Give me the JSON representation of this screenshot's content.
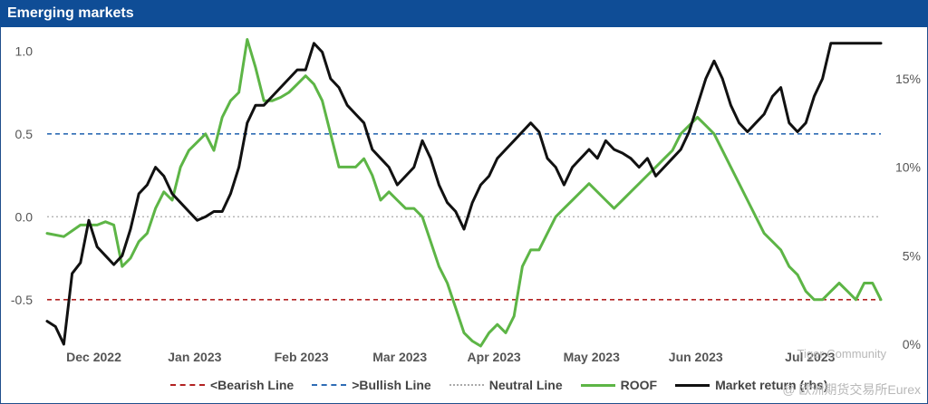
{
  "panel": {
    "title": "Emerging markets"
  },
  "watermark": {
    "line1": "Tiger Community",
    "line2": "@ 欧洲期货交易所Eurex"
  },
  "colors": {
    "header": "#0f4d96",
    "roof": "#5db546",
    "market": "#111111",
    "bearish": "#b22222",
    "bullish": "#2e6cb5",
    "neutral": "#aaaaaa"
  },
  "chart_data": {
    "type": "line",
    "title": "Emerging markets",
    "xlabel": "",
    "ylabel": "",
    "x_ticks": [
      "Dec 2022",
      "Jan 2023",
      "Feb 2023",
      "Mar 2023",
      "Apr 2023",
      "May 2023",
      "Jun 2023",
      "Jul 2023"
    ],
    "x_range": [
      0,
      100
    ],
    "y_left": {
      "ticks": [
        "1.0",
        "0.5",
        "0.0",
        "-0.5"
      ],
      "ylim": [
        -0.78,
        1.1
      ]
    },
    "y_right": {
      "ticks": [
        "15%",
        "10%",
        "5%",
        "0%"
      ],
      "ylim": [
        -0.1,
        17.5
      ]
    },
    "reference_lines": [
      {
        "name": "<Bearish Line",
        "y": -0.5,
        "style": "dashed",
        "color": "#b22222"
      },
      {
        "name": ">Bullish Line",
        "y": 0.5,
        "style": "dashed",
        "color": "#2e6cb5"
      },
      {
        "name": "Neutral Line",
        "y": 0.0,
        "style": "dotted",
        "color": "#aaaaaa"
      }
    ],
    "series": [
      {
        "name": "ROOF",
        "axis": "left",
        "color": "#5db546",
        "x": [
          0,
          2,
          4,
          6,
          7,
          8,
          9,
          10,
          11,
          12,
          13,
          14,
          15,
          16,
          17,
          18,
          19,
          20,
          21,
          22,
          23,
          24,
          25,
          26,
          27,
          28,
          29,
          30,
          31,
          32,
          33,
          34,
          35,
          36,
          37,
          38,
          39,
          40,
          41,
          42,
          43,
          44,
          45,
          46,
          47,
          48,
          49,
          50,
          51,
          52,
          53,
          54,
          55,
          56,
          57,
          58,
          59,
          60,
          61,
          62,
          63,
          64,
          65,
          66,
          67,
          68,
          69,
          70,
          71,
          72,
          73,
          74,
          75,
          76,
          77,
          78,
          79,
          80,
          81,
          82,
          83,
          84,
          85,
          86,
          87,
          88,
          89,
          90,
          91,
          92,
          93,
          94,
          95,
          96,
          97,
          98,
          99,
          100
        ],
        "y": [
          -0.1,
          -0.12,
          -0.05,
          -0.05,
          -0.03,
          -0.05,
          -0.3,
          -0.25,
          -0.15,
          -0.1,
          0.05,
          0.15,
          0.1,
          0.3,
          0.4,
          0.45,
          0.5,
          0.4,
          0.6,
          0.7,
          0.75,
          1.07,
          0.9,
          0.7,
          0.7,
          0.72,
          0.75,
          0.8,
          0.85,
          0.8,
          0.7,
          0.5,
          0.3,
          0.3,
          0.3,
          0.35,
          0.25,
          0.1,
          0.15,
          0.1,
          0.05,
          0.05,
          0.0,
          -0.15,
          -0.3,
          -0.4,
          -0.55,
          -0.7,
          -0.75,
          -0.78,
          -0.7,
          -0.65,
          -0.7,
          -0.6,
          -0.3,
          -0.2,
          -0.2,
          -0.1,
          0.0,
          0.05,
          0.1,
          0.15,
          0.2,
          0.15,
          0.1,
          0.05,
          0.1,
          0.15,
          0.2,
          0.25,
          0.3,
          0.35,
          0.4,
          0.5,
          0.55,
          0.6,
          0.55,
          0.5,
          0.4,
          0.3,
          0.2,
          0.1,
          0.0,
          -0.1,
          -0.15,
          -0.2,
          -0.3,
          -0.35,
          -0.45,
          -0.5,
          -0.5,
          -0.45,
          -0.4,
          -0.45,
          -0.5,
          -0.4,
          -0.4,
          -0.5
        ]
      },
      {
        "name": "Market return (rhs)",
        "axis": "right",
        "color": "#111111",
        "x": [
          0,
          1,
          2,
          3,
          4,
          5,
          6,
          7,
          8,
          9,
          10,
          11,
          12,
          13,
          14,
          15,
          16,
          17,
          18,
          19,
          20,
          21,
          22,
          23,
          24,
          25,
          26,
          27,
          28,
          29,
          30,
          31,
          32,
          33,
          34,
          35,
          36,
          37,
          38,
          39,
          40,
          41,
          42,
          43,
          44,
          45,
          46,
          47,
          48,
          49,
          50,
          51,
          52,
          53,
          54,
          55,
          56,
          57,
          58,
          59,
          60,
          61,
          62,
          63,
          64,
          65,
          66,
          67,
          68,
          69,
          70,
          71,
          72,
          73,
          74,
          75,
          76,
          77,
          78,
          79,
          80,
          81,
          82,
          83,
          84,
          85,
          86,
          87,
          88,
          89,
          90,
          91,
          92,
          93,
          94,
          95,
          96,
          97,
          98,
          99,
          100
        ],
        "y": [
          1.3,
          1.0,
          0.0,
          4.0,
          4.6,
          7.0,
          5.5,
          5.0,
          4.5,
          5.0,
          6.5,
          8.5,
          9.0,
          10.0,
          9.5,
          8.5,
          8.0,
          7.5,
          7.0,
          7.2,
          7.5,
          7.5,
          8.5,
          10.0,
          12.5,
          13.5,
          13.5,
          14.0,
          14.5,
          15.0,
          15.5,
          15.5,
          17.0,
          16.5,
          15.0,
          14.5,
          13.5,
          13.0,
          12.5,
          11.0,
          10.5,
          10.0,
          9.0,
          9.5,
          10.0,
          11.5,
          10.5,
          9.0,
          8.0,
          7.5,
          6.5,
          8.0,
          9.0,
          9.5,
          10.5,
          11.0,
          11.5,
          12.0,
          12.5,
          12.0,
          10.5,
          10.0,
          9.0,
          10.0,
          10.5,
          11.0,
          10.5,
          11.5,
          11.0,
          10.8,
          10.5,
          10.0,
          10.5,
          9.5,
          10.0,
          10.5,
          11.0,
          12.0,
          13.5,
          15.0,
          16.0,
          15.0,
          13.5,
          12.5,
          12.0,
          12.5,
          13.0,
          14.0,
          14.5,
          12.5,
          12.0,
          12.5,
          14.0,
          15.0,
          17.0,
          17.0,
          17.0,
          17.0,
          17.0,
          17.0,
          17.0
        ]
      }
    ],
    "legend": {
      "placement": "bottom",
      "entries": [
        "<Bearish Line",
        ">Bullish Line",
        "Neutral Line",
        "ROOF",
        "Market return (rhs)"
      ]
    },
    "grid": false
  }
}
